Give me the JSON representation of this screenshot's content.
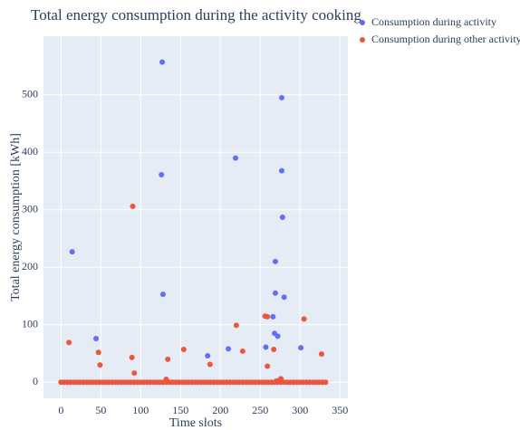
{
  "chart_data": {
    "type": "scatter",
    "title": "Total energy consumption during the activity cooking",
    "x_label": "Time slots",
    "y_label": "Total energy consumption [kWh]",
    "xlim": [
      -22,
      360
    ],
    "ylim": [
      -28,
      602
    ],
    "xticks": [
      0,
      50,
      100,
      150,
      200,
      250,
      300,
      350
    ],
    "yticks": [
      0,
      100,
      200,
      300,
      400,
      500
    ],
    "grid": true,
    "legend": "right",
    "series": [
      {
        "name": "Consumption during activity",
        "color": "#636efa",
        "x": [
          14,
          44,
          127,
          126,
          128,
          184,
          210,
          219,
          257,
          266,
          268,
          272,
          269,
          269,
          277,
          277,
          278,
          280,
          301
        ],
        "values": [
          227,
          76,
          557,
          361,
          153,
          46,
          58,
          390,
          61,
          114,
          85,
          80,
          210,
          155,
          495,
          368,
          287,
          148,
          60
        ]
      },
      {
        "name": "Consumption during other activity",
        "color": "#ef553b",
        "x": [
          10,
          90,
          89,
          92,
          47,
          49,
          134,
          132,
          154,
          187,
          220,
          228,
          256,
          259,
          259,
          267,
          270,
          273,
          276,
          305,
          327,
          0,
          4,
          8,
          12,
          16,
          20,
          24,
          28,
          32,
          36,
          40,
          44,
          48,
          52,
          56,
          60,
          64,
          68,
          72,
          76,
          80,
          84,
          88,
          92,
          96,
          100,
          104,
          108,
          112,
          116,
          120,
          124,
          128,
          132,
          136,
          140,
          144,
          148,
          152,
          156,
          160,
          164,
          168,
          172,
          176,
          180,
          184,
          188,
          192,
          196,
          200,
          204,
          208,
          212,
          216,
          220,
          224,
          228,
          232,
          236,
          240,
          244,
          248,
          252,
          256,
          260,
          264,
          268,
          272,
          276,
          280,
          284,
          288,
          292,
          296,
          300,
          304,
          308,
          312,
          316,
          320,
          324,
          328,
          332
        ],
        "values": [
          69,
          306,
          43,
          16,
          52,
          30,
          40,
          5,
          57,
          31,
          99,
          54,
          115,
          114,
          28,
          57,
          2,
          3,
          6,
          110,
          49,
          0,
          0,
          0,
          0,
          0,
          0,
          0,
          0,
          0,
          0,
          0,
          0,
          0,
          0,
          0,
          0,
          0,
          0,
          0,
          0,
          0,
          0,
          0,
          0,
          0,
          0,
          0,
          0,
          0,
          0,
          0,
          0,
          0,
          0,
          0,
          0,
          0,
          0,
          0,
          0,
          0,
          0,
          0,
          0,
          0,
          0,
          0,
          0,
          0,
          0,
          0,
          0,
          0,
          0,
          0,
          0,
          0,
          0,
          0,
          0,
          0,
          0,
          0,
          0,
          0,
          0,
          0,
          0,
          0,
          0,
          0,
          0,
          0,
          0,
          0,
          0,
          0,
          0,
          0,
          0,
          0,
          0,
          0,
          0
        ]
      }
    ]
  }
}
